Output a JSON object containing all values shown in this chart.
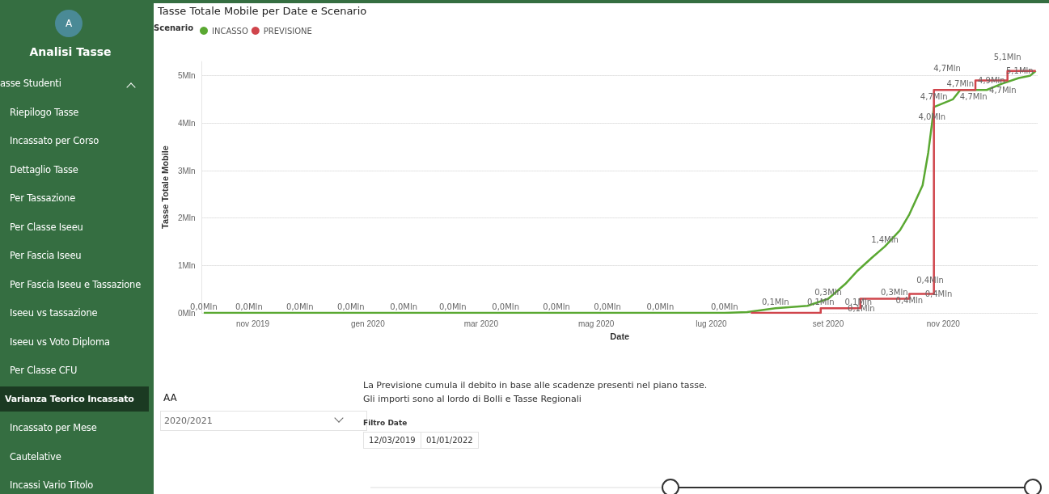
{
  "chart_data": {
    "type": "line",
    "title": "Tasse Totale Mobile per Date e Scenario",
    "xlabel": "Date",
    "ylabel": "Tasse Totale Mobile",
    "legend_title": "Scenario",
    "legend": "top left",
    "grid": "y",
    "marker": "none",
    "line_style": "solid",
    "xlim": [
      "2019-10-05",
      "2020-12-21"
    ],
    "xticks": [
      {
        "value": "2019-11-01",
        "label": "nov 2019"
      },
      {
        "value": "2020-01-01",
        "label": "gen 2020"
      },
      {
        "value": "2020-03-01",
        "label": "mar 2020"
      },
      {
        "value": "2020-05-01",
        "label": "mag 2020"
      },
      {
        "value": "2020-07-01",
        "label": "lug 2020"
      },
      {
        "value": "2020-09-01",
        "label": "set 2020"
      },
      {
        "value": "2020-11-01",
        "label": "nov 2020"
      }
    ],
    "ylim": [
      0,
      5.3
    ],
    "yticks": [
      {
        "value": 0,
        "label": "0Mln"
      },
      {
        "value": 1,
        "label": "1Mln"
      },
      {
        "value": 2,
        "label": "2Mln"
      },
      {
        "value": 3,
        "label": "3Mln"
      },
      {
        "value": 4,
        "label": "4Mln"
      },
      {
        "value": 5,
        "label": "5Mln"
      }
    ],
    "series": [
      {
        "name": "INCASSO",
        "color": "#5aa832",
        "type": "line",
        "x": [
          "2019-10-06",
          "2019-10-30",
          "2019-11-26",
          "2019-12-23",
          "2020-01-20",
          "2020-02-15",
          "2020-03-14",
          "2020-04-10",
          "2020-05-07",
          "2020-06-04",
          "2020-07-08",
          "2020-07-20",
          "2020-08-04",
          "2020-08-21",
          "2020-09-01",
          "2020-09-10",
          "2020-09-16",
          "2020-09-24",
          "2020-10-01",
          "2020-10-09",
          "2020-10-14",
          "2020-10-21",
          "2020-10-24",
          "2020-10-26",
          "2020-10-27",
          "2020-11-06",
          "2020-11-10",
          "2020-11-17",
          "2020-11-24",
          "2020-12-02",
          "2020-12-11",
          "2020-12-17",
          "2020-12-20"
        ],
        "values": [
          0,
          0,
          0,
          0,
          0,
          0,
          0,
          0,
          0,
          0,
          0,
          0.02,
          0.1,
          0.15,
          0.3,
          0.61,
          0.87,
          1.16,
          1.4,
          1.74,
          2.08,
          2.69,
          3.38,
          4.0,
          4.34,
          4.5,
          4.7,
          4.7,
          4.7,
          4.83,
          4.95,
          5.0,
          5.1
        ],
        "value_labels": [
          "0,0Mln",
          "0,0Mln",
          "0,0Mln",
          "0,0Mln",
          "0,0Mln",
          "0,0Mln",
          "0,0Mln",
          "0,0Mln",
          "0,0Mln",
          "0,0Mln",
          "0,0Mln",
          null,
          "0,1Mln",
          null,
          "0,3Mln",
          null,
          null,
          null,
          "1,4Mln",
          null,
          null,
          null,
          null,
          "4,0Mln",
          null,
          null,
          "4,7Mln",
          "4,7Mln",
          "4,7Mln",
          null,
          null,
          null,
          "5,1Mln"
        ]
      },
      {
        "name": "PREVISIONE",
        "color": "#d0454c",
        "type": "step",
        "x": [
          "2020-07-22",
          "2020-08-28",
          "2020-09-10",
          "2020-09-17",
          "2020-09-18",
          "2020-10-06",
          "2020-10-14",
          "2020-10-21",
          "2020-10-25",
          "2020-10-27",
          "2020-11-03",
          "2020-11-18",
          "2020-12-05",
          "2020-12-20"
        ],
        "values": [
          0,
          0.1,
          0.1,
          0.1,
          0.3,
          0.3,
          0.4,
          0.4,
          0.4,
          4.7,
          4.7,
          4.9,
          5.1,
          5.1
        ],
        "value_labels": [
          null,
          "0,1Mln",
          "0,1Mln",
          "0,1Mln",
          null,
          "0,3Mln",
          "0,4Mln",
          "0,4Mln",
          "0,4Mln",
          "4,7Mln",
          "4,7Mln",
          "4,9Mln",
          "5,1Mln",
          null
        ]
      }
    ],
    "annotations": [
      "A",
      "Analisi Tasse",
      "asse Studenti",
      "Riepilogo Tasse",
      "Incassato per Corso",
      "Dettaglio Tasse",
      "Per Tassazione",
      "Per Classe Iseeu",
      "Per Fascia Iseeu",
      "Per Fascia Iseeu e Tassazione",
      "Iseeu vs tassazione",
      "Iseeu vs Voto Diploma",
      "Per Classe CFU",
      "Varianza Teorico Incassato",
      "Incassato per Mese",
      "Cautelative",
      "Incassi Vario Titolo",
      "AA",
      "2020/2021",
      "La Previsione cumula il debito in base alle scadenze presenti nel piano tasse.",
      "Gli importi sono al lordo di Bolli e Tasse Regionali",
      "Filtro Date",
      "12/03/2019",
      "01/01/2022"
    ]
  }
}
